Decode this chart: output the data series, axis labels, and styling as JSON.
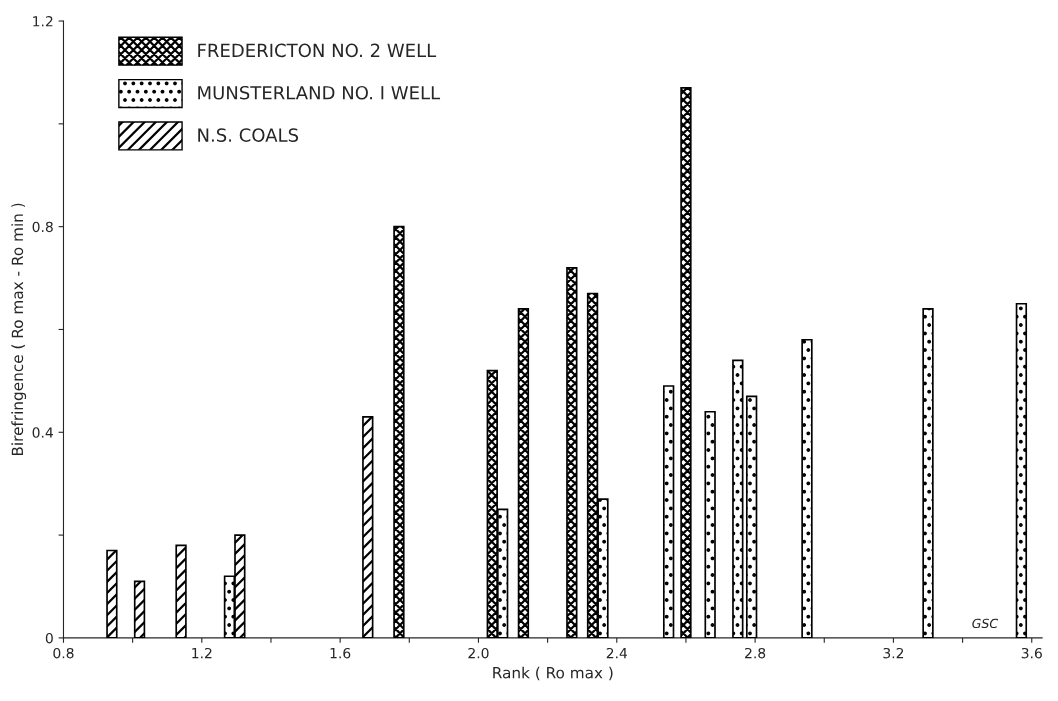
{
  "chart_data": {
    "type": "bar",
    "xlabel": "Rank ( Ro max )",
    "ylabel": "Birefringence ( Ro max - Ro min )",
    "series": [
      {
        "name": "FREDERICTON NO. 2 WELL",
        "color": "#000000",
        "x": [
          1.77,
          2.04,
          2.13,
          2.27,
          2.33,
          2.6
        ],
        "values": [
          0.8,
          0.52,
          0.64,
          0.72,
          0.67,
          1.07
        ]
      },
      {
        "name": "MUNSTERLAND NO. I WELL",
        "color": "#000000",
        "x": [
          1.28,
          2.07,
          2.36,
          2.55,
          2.67,
          2.75,
          2.79,
          2.95,
          3.3,
          3.57
        ],
        "values": [
          0.12,
          0.25,
          0.27,
          0.49,
          0.44,
          0.54,
          0.47,
          0.58,
          0.64,
          0.65
        ]
      },
      {
        "name": "N.S. COALS",
        "color": "#000000",
        "x": [
          0.94,
          1.02,
          1.14,
          1.31,
          1.68
        ],
        "values": [
          0.17,
          0.11,
          0.18,
          0.2,
          0.43
        ]
      }
    ],
    "xlim": [
      0.8,
      3.63
    ],
    "ylim": [
      0,
      1.2
    ],
    "xticks": [
      0.8,
      {
        "value": 1.0,
        "label": null
      },
      1.2,
      {
        "value": 1.4,
        "label": null
      },
      1.6,
      {
        "value": 1.8,
        "label": null
      },
      {
        "value": 2.0,
        "label": "2.0"
      },
      {
        "value": 2.2,
        "label": null
      },
      2.4,
      {
        "value": 2.6,
        "label": null
      },
      2.8,
      {
        "value": 3.0,
        "label": null
      },
      3.2,
      {
        "value": 3.4,
        "label": null
      },
      3.6
    ],
    "yticks": [
      0,
      {
        "value": 0.2,
        "label": null
      },
      0.4,
      {
        "value": 0.6,
        "label": null
      },
      0.8,
      {
        "value": 1.0,
        "label": null
      },
      1.2
    ],
    "annotations": [
      "GSC"
    ],
    "legend": "top left",
    "grid": false
  }
}
